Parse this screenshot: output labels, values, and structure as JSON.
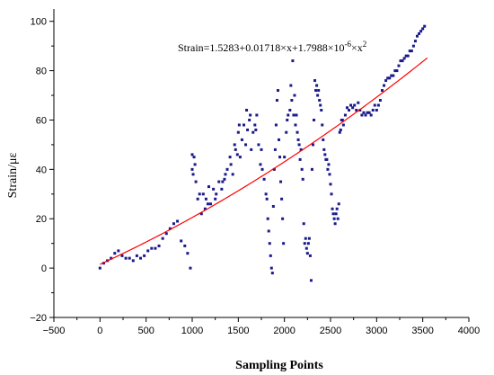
{
  "chart_data": {
    "type": "scatter",
    "title": "",
    "xlabel": "Sampling Points",
    "ylabel": "Strain/με",
    "xlim": [
      -500,
      4000
    ],
    "ylim": [
      -20,
      105
    ],
    "xticks": [
      -500,
      0,
      500,
      1000,
      1500,
      2000,
      2500,
      3000,
      3500,
      4000
    ],
    "yticks": [
      -20,
      0,
      20,
      40,
      60,
      80,
      100
    ],
    "grid": false,
    "annotation": {
      "prefix": "Strain=1.5283+0.01718×x+1.7988×10",
      "exp1": "-6",
      "middle": "×x",
      "exp2": "2"
    },
    "series": [
      {
        "color": "#1a1a8c",
        "style": "scatter",
        "points": [
          [
            0,
            0
          ],
          [
            40,
            2
          ],
          [
            80,
            3
          ],
          [
            120,
            4
          ],
          [
            160,
            6
          ],
          [
            200,
            7
          ],
          [
            240,
            5
          ],
          [
            280,
            4
          ],
          [
            320,
            4
          ],
          [
            360,
            3
          ],
          [
            400,
            5
          ],
          [
            440,
            4
          ],
          [
            480,
            5
          ],
          [
            520,
            7
          ],
          [
            560,
            8
          ],
          [
            600,
            8
          ],
          [
            640,
            9
          ],
          [
            680,
            12
          ],
          [
            720,
            14
          ],
          [
            760,
            16
          ],
          [
            800,
            18
          ],
          [
            840,
            19
          ],
          [
            880,
            11
          ],
          [
            920,
            9
          ],
          [
            950,
            6
          ],
          [
            980,
            0
          ],
          [
            1000,
            40
          ],
          [
            1020,
            45
          ],
          [
            1040,
            35
          ],
          [
            1060,
            28
          ],
          [
            1080,
            30
          ],
          [
            1100,
            22
          ],
          [
            1120,
            30
          ],
          [
            1150,
            28
          ],
          [
            1180,
            33
          ],
          [
            1200,
            26
          ],
          [
            1230,
            32
          ],
          [
            1260,
            30
          ],
          [
            1290,
            35
          ],
          [
            1320,
            32
          ],
          [
            1350,
            36
          ],
          [
            1380,
            40
          ],
          [
            1410,
            45
          ],
          [
            1440,
            38
          ],
          [
            1470,
            48
          ],
          [
            1500,
            55
          ],
          [
            1520,
            45
          ],
          [
            1540,
            52
          ],
          [
            1560,
            58
          ],
          [
            1580,
            50
          ],
          [
            1600,
            56
          ],
          [
            1620,
            60
          ],
          [
            1640,
            48
          ],
          [
            1660,
            55
          ],
          [
            1680,
            58
          ],
          [
            1700,
            62
          ],
          [
            1720,
            50
          ],
          [
            1740,
            42
          ],
          [
            1760,
            40
          ],
          [
            1780,
            36
          ],
          [
            1800,
            30
          ],
          [
            1820,
            20
          ],
          [
            1840,
            10
          ],
          [
            1860,
            0
          ],
          [
            1880,
            25
          ],
          [
            1900,
            48
          ],
          [
            1920,
            68
          ],
          [
            1940,
            52
          ],
          [
            1960,
            35
          ],
          [
            1980,
            20
          ],
          [
            2000,
            45
          ],
          [
            2020,
            55
          ],
          [
            2040,
            62
          ],
          [
            2060,
            64
          ],
          [
            2080,
            68
          ],
          [
            2100,
            62
          ],
          [
            2120,
            58
          ],
          [
            2140,
            55
          ],
          [
            2160,
            50
          ],
          [
            2180,
            48
          ],
          [
            2200,
            36
          ],
          [
            2210,
            18
          ],
          [
            2220,
            10
          ],
          [
            2240,
            8
          ],
          [
            2260,
            10
          ],
          [
            2280,
            5
          ],
          [
            2300,
            40
          ],
          [
            2320,
            60
          ],
          [
            2340,
            72
          ],
          [
            2360,
            70
          ],
          [
            2380,
            68
          ],
          [
            2400,
            64
          ],
          [
            2420,
            52
          ],
          [
            2440,
            46
          ],
          [
            2460,
            44
          ],
          [
            2480,
            42
          ],
          [
            2500,
            34
          ],
          [
            2520,
            24
          ],
          [
            2540,
            20
          ],
          [
            2560,
            22
          ],
          [
            2580,
            20
          ],
          [
            2600,
            55
          ],
          [
            2620,
            60
          ],
          [
            2640,
            58
          ],
          [
            2660,
            62
          ],
          [
            2680,
            65
          ],
          [
            2700,
            64
          ],
          [
            2720,
            66
          ],
          [
            2740,
            65
          ],
          [
            2760,
            66
          ],
          [
            2780,
            64
          ],
          [
            2800,
            67
          ],
          [
            2820,
            64
          ],
          [
            2840,
            62
          ],
          [
            2860,
            63
          ],
          [
            2880,
            62
          ],
          [
            2900,
            63
          ],
          [
            2920,
            63
          ],
          [
            2940,
            62
          ],
          [
            2960,
            64
          ],
          [
            2980,
            66
          ],
          [
            3000,
            64
          ],
          [
            3020,
            66
          ],
          [
            3040,
            68
          ],
          [
            3060,
            72
          ],
          [
            3080,
            74
          ],
          [
            3100,
            76
          ],
          [
            3120,
            77
          ],
          [
            3140,
            77
          ],
          [
            3160,
            78
          ],
          [
            3180,
            78
          ],
          [
            3200,
            80
          ],
          [
            3220,
            80
          ],
          [
            3240,
            82
          ],
          [
            3260,
            84
          ],
          [
            3280,
            84
          ],
          [
            3300,
            85
          ],
          [
            3320,
            86
          ],
          [
            3340,
            86
          ],
          [
            3360,
            88
          ],
          [
            3380,
            88
          ],
          [
            3400,
            90
          ],
          [
            3420,
            92
          ],
          [
            3440,
            94
          ],
          [
            3460,
            95
          ],
          [
            3480,
            96
          ],
          [
            3500,
            97
          ],
          [
            3520,
            98
          ],
          [
            1000,
            46
          ],
          [
            1010,
            38
          ],
          [
            1030,
            42
          ],
          [
            1140,
            24
          ],
          [
            1170,
            26
          ],
          [
            1250,
            28
          ],
          [
            1330,
            35
          ],
          [
            1360,
            38
          ],
          [
            1420,
            42
          ],
          [
            1460,
            50
          ],
          [
            1490,
            46
          ],
          [
            1510,
            58
          ],
          [
            1590,
            64
          ],
          [
            1630,
            62
          ],
          [
            1690,
            56
          ],
          [
            1750,
            48
          ],
          [
            1810,
            28
          ],
          [
            1830,
            15
          ],
          [
            1850,
            5
          ],
          [
            1870,
            -2
          ],
          [
            1890,
            40
          ],
          [
            1910,
            58
          ],
          [
            1930,
            72
          ],
          [
            1950,
            45
          ],
          [
            1970,
            28
          ],
          [
            1990,
            10
          ],
          [
            2030,
            60
          ],
          [
            2070,
            74
          ],
          [
            2090,
            84
          ],
          [
            2110,
            70
          ],
          [
            2130,
            62
          ],
          [
            2150,
            52
          ],
          [
            2170,
            44
          ],
          [
            2190,
            40
          ],
          [
            2230,
            12
          ],
          [
            2250,
            6
          ],
          [
            2270,
            12
          ],
          [
            2290,
            -5
          ],
          [
            2310,
            50
          ],
          [
            2330,
            76
          ],
          [
            2350,
            74
          ],
          [
            2370,
            72
          ],
          [
            2390,
            66
          ],
          [
            2410,
            58
          ],
          [
            2430,
            48
          ],
          [
            2450,
            44
          ],
          [
            2470,
            40
          ],
          [
            2490,
            38
          ],
          [
            2510,
            30
          ],
          [
            2530,
            22
          ],
          [
            2550,
            18
          ],
          [
            2570,
            24
          ],
          [
            2590,
            26
          ],
          [
            2610,
            56
          ],
          [
            2630,
            60
          ]
        ]
      },
      {
        "color": "#ff0000",
        "style": "fit-line",
        "x_range": [
          0,
          3550
        ],
        "coefficients": [
          1.5283,
          0.01718,
          1.7988e-06
        ]
      }
    ]
  }
}
